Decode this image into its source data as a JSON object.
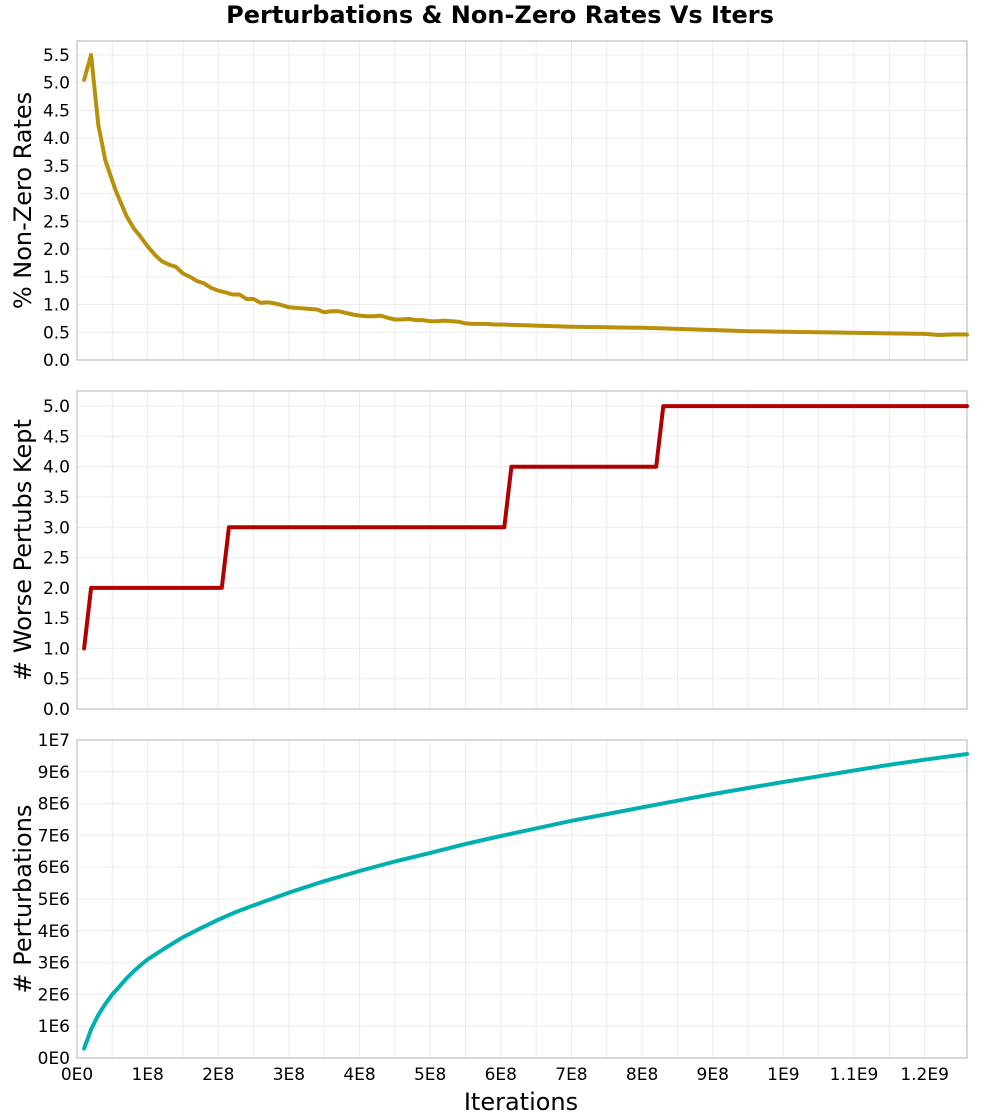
{
  "chart_data": {
    "type": "line",
    "title": "Perturbations & Non-Zero Rates Vs Iters",
    "xlabel": "Iterations",
    "xlim": [
      0,
      1260000000
    ],
    "x_ticks": [
      {
        "value": 0,
        "label": "0E0"
      },
      {
        "value": 100000000,
        "label": "1E8"
      },
      {
        "value": 200000000,
        "label": "2E8"
      },
      {
        "value": 300000000,
        "label": "3E8"
      },
      {
        "value": 400000000,
        "label": "4E8"
      },
      {
        "value": 500000000,
        "label": "5E8"
      },
      {
        "value": 600000000,
        "label": "6E8"
      },
      {
        "value": 700000000,
        "label": "7E8"
      },
      {
        "value": 800000000,
        "label": "8E8"
      },
      {
        "value": 900000000,
        "label": "9E8"
      },
      {
        "value": 1000000000,
        "label": "1E9"
      },
      {
        "value": 1100000000,
        "label": "1.1E9"
      },
      {
        "value": 1200000000,
        "label": "1.2E9"
      }
    ],
    "grid": true,
    "panels": [
      {
        "ylabel": "% Non-Zero Rates",
        "ylim": [
          0,
          5.75
        ],
        "color": "#b8900a",
        "y_ticks": [
          {
            "value": 0,
            "label": "0.0"
          },
          {
            "value": 0.5,
            "label": "0.5"
          },
          {
            "value": 1,
            "label": "1.0"
          },
          {
            "value": 1.5,
            "label": "1.5"
          },
          {
            "value": 2,
            "label": "2.0"
          },
          {
            "value": 2.5,
            "label": "2.5"
          },
          {
            "value": 3,
            "label": "3.0"
          },
          {
            "value": 3.5,
            "label": "3.5"
          },
          {
            "value": 4,
            "label": "4.0"
          },
          {
            "value": 4.5,
            "label": "4.5"
          },
          {
            "value": 5,
            "label": "5.0"
          },
          {
            "value": 5.5,
            "label": "5.5"
          }
        ],
        "series": [
          {
            "x": [
              10000000,
              20000000,
              30000000,
              40000000,
              55000000,
              70000000,
              80000000,
              90000000,
              100000000,
              110000000,
              120000000,
              130000000,
              140000000,
              150000000,
              160000000,
              170000000,
              180000000,
              190000000,
              200000000,
              210000000,
              220000000,
              230000000,
              240000000,
              250000000,
              260000000,
              270000000,
              280000000,
              290000000,
              300000000,
              310000000,
              320000000,
              330000000,
              340000000,
              350000000,
              360000000,
              370000000,
              380000000,
              390000000,
              400000000,
              410000000,
              420000000,
              430000000,
              440000000,
              450000000,
              460000000,
              470000000,
              480000000,
              490000000,
              500000000,
              510000000,
              520000000,
              530000000,
              540000000,
              550000000,
              560000000,
              570000000,
              580000000,
              590000000,
              600000000,
              650000000,
              700000000,
              750000000,
              800000000,
              850000000,
              900000000,
              950000000,
              1000000000,
              1050000000,
              1100000000,
              1150000000,
              1200000000,
              1220000000,
              1240000000,
              1260000000
            ],
            "values": [
              5.05,
              5.5,
              4.25,
              3.6,
              3.05,
              2.6,
              2.38,
              2.22,
              2.05,
              1.9,
              1.78,
              1.72,
              1.68,
              1.56,
              1.5,
              1.42,
              1.38,
              1.3,
              1.25,
              1.22,
              1.18,
              1.18,
              1.1,
              1.1,
              1.03,
              1.04,
              1.02,
              0.99,
              0.95,
              0.94,
              0.93,
              0.92,
              0.91,
              0.86,
              0.88,
              0.88,
              0.85,
              0.82,
              0.8,
              0.79,
              0.79,
              0.8,
              0.76,
              0.73,
              0.73,
              0.74,
              0.72,
              0.72,
              0.7,
              0.7,
              0.71,
              0.7,
              0.69,
              0.66,
              0.65,
              0.65,
              0.65,
              0.64,
              0.64,
              0.62,
              0.6,
              0.59,
              0.58,
              0.56,
              0.54,
              0.52,
              0.51,
              0.5,
              0.49,
              0.48,
              0.47,
              0.45,
              0.46,
              0.46
            ]
          }
        ]
      },
      {
        "ylabel": "# Worse Pertubs Kept",
        "ylim": [
          0,
          5.25
        ],
        "color": "#b00000",
        "y_ticks": [
          {
            "value": 0,
            "label": "0.0"
          },
          {
            "value": 0.5,
            "label": "0.5"
          },
          {
            "value": 1,
            "label": "1.0"
          },
          {
            "value": 1.5,
            "label": "1.5"
          },
          {
            "value": 2,
            "label": "2.0"
          },
          {
            "value": 2.5,
            "label": "2.5"
          },
          {
            "value": 3,
            "label": "3.0"
          },
          {
            "value": 3.5,
            "label": "3.5"
          },
          {
            "value": 4,
            "label": "4.0"
          },
          {
            "value": 4.5,
            "label": "4.5"
          },
          {
            "value": 5,
            "label": "5.0"
          }
        ],
        "series": [
          {
            "x": [
              10000000,
              20000000,
              205000000,
              215000000,
              605000000,
              615000000,
              820000000,
              830000000,
              1260000000
            ],
            "values": [
              1,
              2,
              2,
              3,
              3,
              4,
              4,
              5,
              5
            ]
          }
        ]
      },
      {
        "ylabel": "# Perturbations",
        "ylim": [
          0,
          10000000
        ],
        "color": "#00b0b0",
        "y_ticks": [
          {
            "value": 0,
            "label": "0E0"
          },
          {
            "value": 1000000,
            "label": "1E6"
          },
          {
            "value": 2000000,
            "label": "2E6"
          },
          {
            "value": 3000000,
            "label": "3E6"
          },
          {
            "value": 4000000,
            "label": "4E6"
          },
          {
            "value": 5000000,
            "label": "5E6"
          },
          {
            "value": 6000000,
            "label": "6E6"
          },
          {
            "value": 7000000,
            "label": "7E6"
          },
          {
            "value": 8000000,
            "label": "8E6"
          },
          {
            "value": 9000000,
            "label": "9E6"
          },
          {
            "value": 10000000,
            "label": "1E7"
          }
        ],
        "series": [
          {
            "x": [
              10000000,
              20000000,
              30000000,
              40000000,
              50000000,
              60000000,
              70000000,
              80000000,
              90000000,
              100000000,
              125000000,
              150000000,
              175000000,
              200000000,
              225000000,
              250000000,
              275000000,
              300000000,
              350000000,
              400000000,
              450000000,
              500000000,
              550000000,
              600000000,
              650000000,
              700000000,
              750000000,
              800000000,
              850000000,
              900000000,
              950000000,
              1000000000,
              1050000000,
              1100000000,
              1150000000,
              1200000000,
              1260000000
            ],
            "values": [
              300000,
              900000,
              1350000,
              1700000,
              2000000,
              2250000,
              2500000,
              2720000,
              2920000,
              3100000,
              3460000,
              3800000,
              4080000,
              4350000,
              4590000,
              4800000,
              5000000,
              5200000,
              5560000,
              5880000,
              6180000,
              6450000,
              6730000,
              6980000,
              7220000,
              7460000,
              7670000,
              7880000,
              8090000,
              8300000,
              8490000,
              8680000,
              8860000,
              9040000,
              9220000,
              9380000,
              9560000
            ]
          }
        ]
      }
    ]
  }
}
